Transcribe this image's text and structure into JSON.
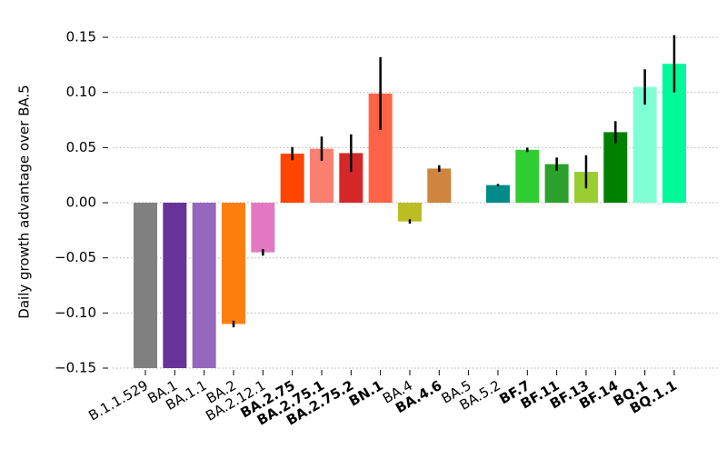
{
  "chart_data": {
    "type": "bar",
    "y_label": "Daily growth advantage over BA.5",
    "categories": [
      "B.1.1.529",
      "BA.1",
      "BA.1.1",
      "BA.2",
      "BA.2.12.1",
      "BA.2.75",
      "BA.2.75.1",
      "BA.2.75.2",
      "BN.1",
      "BA.4",
      "BA.4.6",
      "BA.5",
      "BA.5.2",
      "BF.7",
      "BF.11",
      "BF.13",
      "BF.14",
      "BQ.1",
      "BQ.1.1"
    ],
    "bold": [
      false,
      false,
      false,
      false,
      false,
      true,
      true,
      true,
      true,
      false,
      true,
      false,
      false,
      true,
      true,
      true,
      true,
      true,
      true
    ],
    "values": [
      -0.15,
      -0.15,
      -0.15,
      -0.11,
      -0.045,
      0.0445,
      0.049,
      0.045,
      0.099,
      -0.017,
      0.031,
      0,
      0.016,
      0.048,
      0.035,
      0.028,
      0.064,
      0.105,
      0.126
    ],
    "errors": [
      null,
      null,
      null,
      0.003,
      0.003,
      0.006,
      0.011,
      0.017,
      0.033,
      0.002,
      0.003,
      null,
      0.001,
      0.002,
      0.006,
      0.015,
      0.01,
      0.016,
      0.026
    ],
    "colors": [
      "#808080",
      "#663399",
      "#9467bd",
      "#ff7f0e",
      "#e377c2",
      "#ff4500",
      "#fa8072",
      "#d62728",
      "#ff6347",
      "#bcbd22",
      "#cd853f",
      "#1f77b4",
      "#008b8b",
      "#32cd32",
      "#2ca02c",
      "#9acd32",
      "#008000",
      "#7fffd4",
      "#00fa9a"
    ],
    "ylim": [
      -0.15,
      0.155
    ],
    "yticks": [
      {
        "value": -0.15,
        "label": "−0.15"
      },
      {
        "value": -0.1,
        "label": "−0.10"
      },
      {
        "value": -0.05,
        "label": "−0.05"
      },
      {
        "value": 0,
        "label": "0.00"
      },
      {
        "value": 0.05,
        "label": "0.05"
      },
      {
        "value": 0.1,
        "label": "0.10"
      },
      {
        "value": 0.15,
        "label": "0.15"
      }
    ],
    "grid": true
  }
}
